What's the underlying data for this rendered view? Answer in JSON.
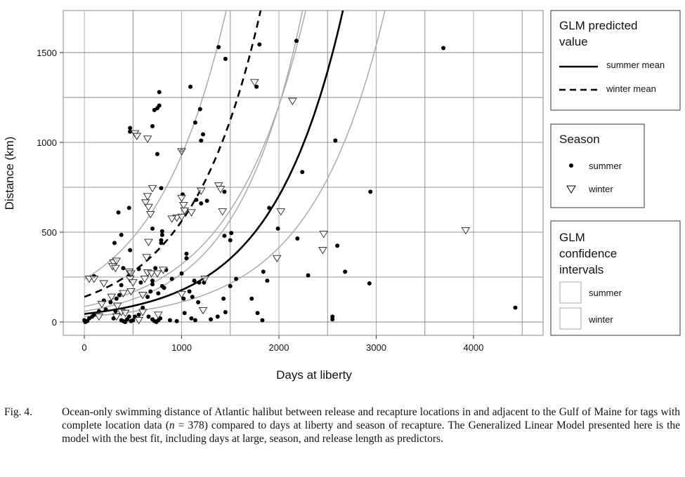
{
  "chart_data": {
    "type": "scatter",
    "xlabel": "Days at liberty",
    "ylabel": "Distance (km)",
    "xlim": [
      -217,
      4715
    ],
    "ylim": [
      -74,
      1734
    ],
    "xticks": [
      0,
      1000,
      2000,
      3000,
      4000
    ],
    "xtick_labels": [
      "0",
      "1000",
      "2000",
      "3000",
      "4000"
    ],
    "yticks": [
      0,
      500,
      1000,
      1500
    ],
    "ytick_labels": [
      "0",
      "500",
      "1000",
      "1500"
    ],
    "grid": true,
    "series": [
      {
        "name": "summer",
        "marker": "filled-circle",
        "points": [
          [
            1380,
            1530
          ],
          [
            1450,
            1465
          ],
          [
            1800,
            1545
          ],
          [
            2180,
            1565
          ],
          [
            3690,
            1525
          ],
          [
            1090,
            1310
          ],
          [
            1770,
            1310
          ],
          [
            770,
            1280
          ],
          [
            720,
            1180
          ],
          [
            750,
            1190
          ],
          [
            770,
            1205
          ],
          [
            1190,
            1185
          ],
          [
            1140,
            1110
          ],
          [
            470,
            1080
          ],
          [
            470,
            1060
          ],
          [
            700,
            1090
          ],
          [
            1000,
            955
          ],
          [
            1220,
            1045
          ],
          [
            1200,
            1010
          ],
          [
            750,
            935
          ],
          [
            2580,
            1010
          ],
          [
            2240,
            835
          ],
          [
            2940,
            725
          ],
          [
            790,
            745
          ],
          [
            1440,
            725
          ],
          [
            1010,
            710
          ],
          [
            1150,
            680
          ],
          [
            1200,
            660
          ],
          [
            1260,
            675
          ],
          [
            460,
            635
          ],
          [
            350,
            610
          ],
          [
            1900,
            635
          ],
          [
            1990,
            520
          ],
          [
            2190,
            465
          ],
          [
            1510,
            495
          ],
          [
            1500,
            455
          ],
          [
            1440,
            480
          ],
          [
            700,
            520
          ],
          [
            800,
            505
          ],
          [
            800,
            485
          ],
          [
            2600,
            425
          ],
          [
            2680,
            280
          ],
          [
            1840,
            280
          ],
          [
            1880,
            230
          ],
          [
            2300,
            260
          ],
          [
            2930,
            215
          ],
          [
            4430,
            80
          ],
          [
            1560,
            240
          ],
          [
            1500,
            200
          ],
          [
            1430,
            130
          ],
          [
            1720,
            130
          ],
          [
            1780,
            50
          ],
          [
            1830,
            10
          ],
          [
            1450,
            55
          ],
          [
            2550,
            30
          ],
          [
            2550,
            15
          ],
          [
            1370,
            30
          ],
          [
            1050,
            355
          ],
          [
            1050,
            380
          ],
          [
            790,
            440
          ],
          [
            790,
            455
          ],
          [
            310,
            440
          ],
          [
            380,
            485
          ],
          [
            470,
            400
          ],
          [
            100,
            255
          ],
          [
            200,
            120
          ],
          [
            270,
            110
          ],
          [
            380,
            205
          ],
          [
            400,
            300
          ],
          [
            470,
            260
          ],
          [
            560,
            295
          ],
          [
            580,
            220
          ],
          [
            700,
            230
          ],
          [
            730,
            300
          ],
          [
            800,
            200
          ],
          [
            820,
            190
          ],
          [
            1020,
            130
          ],
          [
            1080,
            170
          ],
          [
            1110,
            140
          ],
          [
            1170,
            110
          ],
          [
            1030,
            50
          ],
          [
            1100,
            20
          ],
          [
            1140,
            10
          ],
          [
            1300,
            15
          ],
          [
            880,
            10
          ],
          [
            950,
            5
          ],
          [
            0,
            10
          ],
          [
            10,
            0
          ],
          [
            30,
            5
          ],
          [
            50,
            20
          ],
          [
            80,
            30
          ],
          [
            100,
            40
          ],
          [
            150,
            60
          ],
          [
            220,
            70
          ],
          [
            300,
            20
          ],
          [
            320,
            60
          ],
          [
            330,
            130
          ],
          [
            360,
            150
          ],
          [
            380,
            10
          ],
          [
            400,
            5
          ],
          [
            420,
            0
          ],
          [
            440,
            15
          ],
          [
            460,
            30
          ],
          [
            480,
            5
          ],
          [
            500,
            10
          ],
          [
            520,
            30
          ],
          [
            560,
            40
          ],
          [
            600,
            80
          ],
          [
            650,
            140
          ],
          [
            660,
            30
          ],
          [
            700,
            15
          ],
          [
            720,
            5
          ],
          [
            740,
            0
          ],
          [
            760,
            10
          ],
          [
            780,
            20
          ],
          [
            760,
            160
          ],
          [
            840,
            290
          ],
          [
            900,
            240
          ],
          [
            1000,
            270
          ],
          [
            1130,
            230
          ],
          [
            1180,
            220
          ],
          [
            1230,
            220
          ],
          [
            680,
            170
          ],
          [
            700,
            210
          ]
        ]
      },
      {
        "name": "winter",
        "marker": "open-down-triangle",
        "points": [
          [
            1750,
            1335
          ],
          [
            2140,
            1230
          ],
          [
            520,
            1050
          ],
          [
            540,
            1035
          ],
          [
            650,
            1020
          ],
          [
            1000,
            950
          ],
          [
            700,
            745
          ],
          [
            1380,
            760
          ],
          [
            1400,
            740
          ],
          [
            1200,
            730
          ],
          [
            1000,
            690
          ],
          [
            650,
            700
          ],
          [
            630,
            665
          ],
          [
            660,
            640
          ],
          [
            1020,
            650
          ],
          [
            1030,
            620
          ],
          [
            1100,
            610
          ],
          [
            680,
            600
          ],
          [
            1420,
            615
          ],
          [
            950,
            580
          ],
          [
            1000,
            585
          ],
          [
            2020,
            615
          ],
          [
            900,
            575
          ],
          [
            2460,
            490
          ],
          [
            3920,
            510
          ],
          [
            2450,
            400
          ],
          [
            1980,
            355
          ],
          [
            660,
            445
          ],
          [
            640,
            360
          ],
          [
            300,
            330
          ],
          [
            330,
            340
          ],
          [
            290,
            310
          ],
          [
            320,
            300
          ],
          [
            460,
            280
          ],
          [
            480,
            270
          ],
          [
            470,
            240
          ],
          [
            650,
            275
          ],
          [
            690,
            270
          ],
          [
            620,
            240
          ],
          [
            810,
            290
          ],
          [
            750,
            270
          ],
          [
            600,
            150
          ],
          [
            400,
            160
          ],
          [
            480,
            170
          ],
          [
            500,
            220
          ],
          [
            1000,
            155
          ],
          [
            1240,
            240
          ],
          [
            1220,
            65
          ],
          [
            50,
            240
          ],
          [
            100,
            240
          ],
          [
            200,
            215
          ],
          [
            180,
            100
          ],
          [
            280,
            140
          ],
          [
            340,
            90
          ],
          [
            380,
            55
          ],
          [
            420,
            50
          ],
          [
            600,
            55
          ],
          [
            330,
            30
          ],
          [
            150,
            30
          ],
          [
            760,
            40
          ],
          [
            560,
            10
          ]
        ]
      }
    ],
    "fitted_curves": [
      {
        "name": "summer mean",
        "style": "solid",
        "model": "exponential",
        "a": 45,
        "b": 0.001374
      },
      {
        "name": "winter mean",
        "style": "dashed",
        "model": "exponential",
        "a": 140,
        "b": 0.001389
      },
      {
        "name": "winter upper CI",
        "style": "gray",
        "model": "exponential",
        "a": 238,
        "b": 0.001362
      },
      {
        "name": "winter lower CI",
        "style": "gray",
        "model": "exponential",
        "a": 86,
        "b": 0.00132
      },
      {
        "name": "summer upper CI",
        "style": "gray",
        "model": "exponential",
        "a": 60,
        "b": 0.0015
      },
      {
        "name": "summer lower CI",
        "style": "gray",
        "model": "exponential",
        "a": 30,
        "b": 0.001313
      }
    ],
    "legend_placement": "right"
  },
  "legend": {
    "glm": {
      "title_line1": "GLM predicted",
      "title_line2": "value",
      "summer": "summer mean",
      "winter": "winter mean"
    },
    "season": {
      "title": "Season",
      "summer": "summer",
      "winter": "winter"
    },
    "ci": {
      "title_line1": "GLM",
      "title_line2": "confidence",
      "title_line3": "intervals",
      "summer": "summer",
      "winter": "winter"
    }
  },
  "caption": {
    "label": "Fig. 4.",
    "text_before": "Ocean-only swimming distance of Atlantic halibut between release and recapture locations in and adjacent to the Gulf of Maine for tags with complete location data (",
    "n_symbol": "n",
    "text_after": " = 378) compared to days at liberty and season of recapture. The Generalized Linear Model presented here is the model with the best fit, including days at large, season, and release length as predictors."
  }
}
